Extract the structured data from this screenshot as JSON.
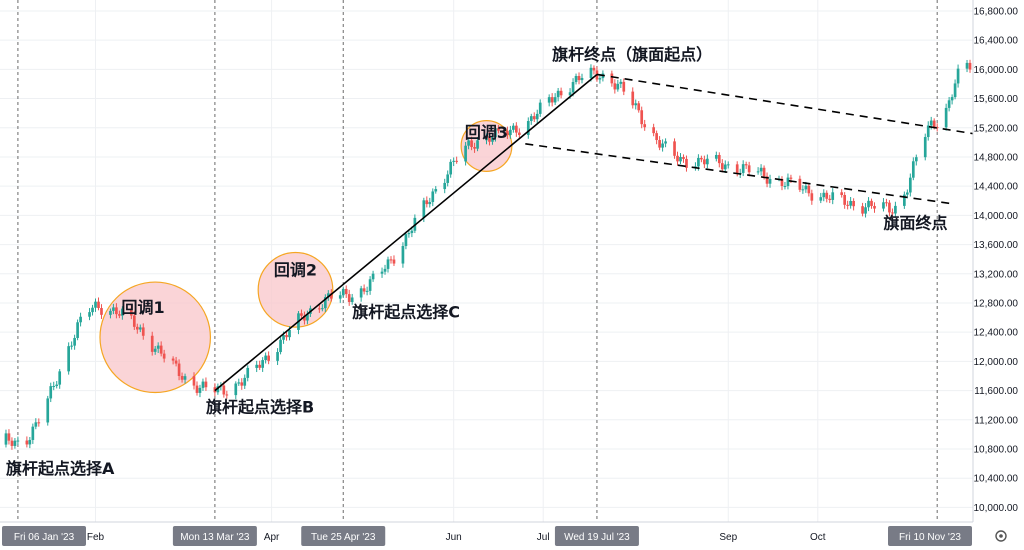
{
  "chart_data": {
    "type": "candlestick",
    "y_axis": {
      "range": [
        9800,
        16950
      ],
      "ticks": [
        10000,
        10400,
        10800,
        11200,
        11600,
        12000,
        12400,
        12800,
        13200,
        13600,
        14000,
        14400,
        14800,
        15200,
        15600,
        16000,
        16400,
        16800
      ],
      "tick_labels": [
        "10,000.00",
        "10,400.00",
        "10,800.00",
        "11,200.00",
        "11,600.00",
        "12,000.00",
        "12,400.00",
        "12,800.00",
        "13,200.00",
        "13,600.00",
        "14,000.00",
        "14,400.00",
        "14,800.00",
        "15,200.00",
        "15,600.00",
        "16,000.00",
        "16,400.00",
        "16,800.00"
      ]
    },
    "x_axis": {
      "range": [
        "2022-12-31",
        "2023-11-22"
      ],
      "month_labels": [
        {
          "date": "2023-02-01",
          "label": "Feb"
        },
        {
          "date": "2023-04-01",
          "label": "Apr"
        },
        {
          "date": "2023-06-01",
          "label": "Jun"
        },
        {
          "date": "2023-07-01",
          "label": "Jul"
        },
        {
          "date": "2023-09-01",
          "label": "Sep"
        },
        {
          "date": "2023-10-01",
          "label": "Oct"
        }
      ],
      "date_markers": [
        {
          "date": "2023-01-06",
          "label": "Fri 06 Jan '23"
        },
        {
          "date": "2023-03-13",
          "label": "Mon 13 Mar '23"
        },
        {
          "date": "2023-04-25",
          "label": "Tue 25 Apr '23"
        },
        {
          "date": "2023-07-19",
          "label": "Wed 19 Jul '23"
        },
        {
          "date": "2023-11-10",
          "label": "Fri 10 Nov '23"
        }
      ]
    },
    "colors": {
      "up": "#26a69a",
      "down": "#ef5350",
      "circle_fill": "#f8c8cc",
      "circle_stroke": "#f5a623",
      "line": "#000000"
    },
    "key_prices": [
      {
        "date": "2023-01-06",
        "price": 10900
      },
      {
        "date": "2023-02-02",
        "price": 12750
      },
      {
        "date": "2023-03-13",
        "price": 11600
      },
      {
        "date": "2023-04-25",
        "price": 12900
      },
      {
        "date": "2023-06-15",
        "price": 15100
      },
      {
        "date": "2023-07-19",
        "price": 15930
      },
      {
        "date": "2023-08-18",
        "price": 14750
      },
      {
        "date": "2023-10-26",
        "price": 14100
      },
      {
        "date": "2023-11-10",
        "price": 15300
      },
      {
        "date": "2023-11-20",
        "price": 16050
      }
    ],
    "flagpole_line": {
      "from": {
        "date": "2023-03-13",
        "price": 11600
      },
      "to": {
        "date": "2023-07-19",
        "price": 15930
      }
    },
    "flag_channel": {
      "upper": {
        "from": {
          "date": "2023-07-19",
          "price": 15930
        },
        "to": {
          "date": "2023-11-22",
          "price": 15120
        }
      },
      "lower": {
        "from": {
          "date": "2023-06-25",
          "price": 14980
        },
        "to": {
          "date": "2023-11-15",
          "price": 14160
        }
      }
    },
    "pullback_zones": [
      {
        "label": "回调1",
        "center": {
          "date": "2023-02-21",
          "price": 12330
        },
        "radius_days": 18.5
      },
      {
        "label": "回调2",
        "center": {
          "date": "2023-04-09",
          "price": 12980
        },
        "radius_days": 12.5
      },
      {
        "label": "回调3",
        "center": {
          "date": "2023-06-12",
          "price": 14950
        },
        "radius_days": 8.5
      }
    ],
    "annotations": [
      {
        "text": "旗杆起点选择A",
        "date": "2023-01-02",
        "price": 10460
      },
      {
        "text": "旗杆起点选择B",
        "date": "2023-03-10",
        "price": 11300
      },
      {
        "text": "旗杆起点选择C",
        "date": "2023-04-28",
        "price": 12600
      },
      {
        "text": "旗杆终点（旗面起点）",
        "date": "2023-07-04",
        "price": 16130
      },
      {
        "text": "旗面终点",
        "date": "2023-10-23",
        "price": 13820
      }
    ]
  }
}
